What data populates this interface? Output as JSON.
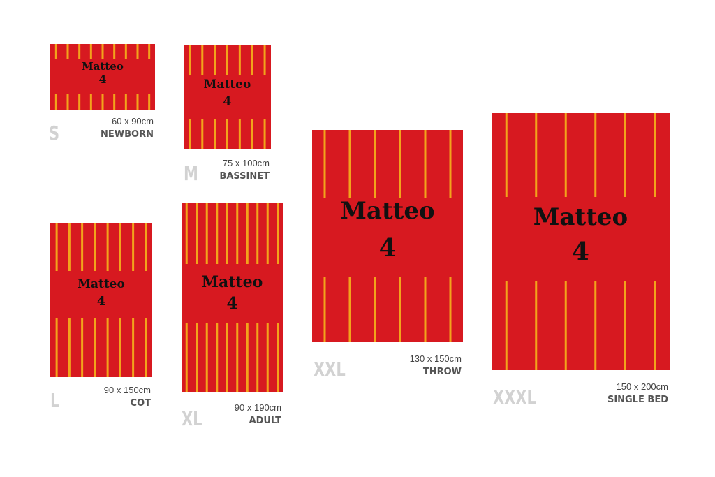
{
  "items": [
    {
      "size": "S",
      "dimensions": "60 x 90cm",
      "label": "NEWBORN",
      "name": "Matteo",
      "number": "4"
    },
    {
      "size": "M",
      "dimensions": "75 x 100cm",
      "label": "BASSINET",
      "name": "Matteo",
      "number": "4"
    },
    {
      "size": "L",
      "dimensions": "90 x 150cm",
      "label": "COT",
      "name": "Matteo",
      "number": "4"
    },
    {
      "size": "XL",
      "dimensions": "90 x 190cm",
      "label": "ADULT",
      "name": "Matteo",
      "number": "4"
    },
    {
      "size": "XXL",
      "dimensions": "130 x 150cm",
      "label": "THROW",
      "name": "Matteo",
      "number": "4"
    },
    {
      "size": "XXXL",
      "dimensions": "150 x 200cm",
      "label": "SINGLE BED",
      "name": "Matteo",
      "number": "4"
    }
  ]
}
